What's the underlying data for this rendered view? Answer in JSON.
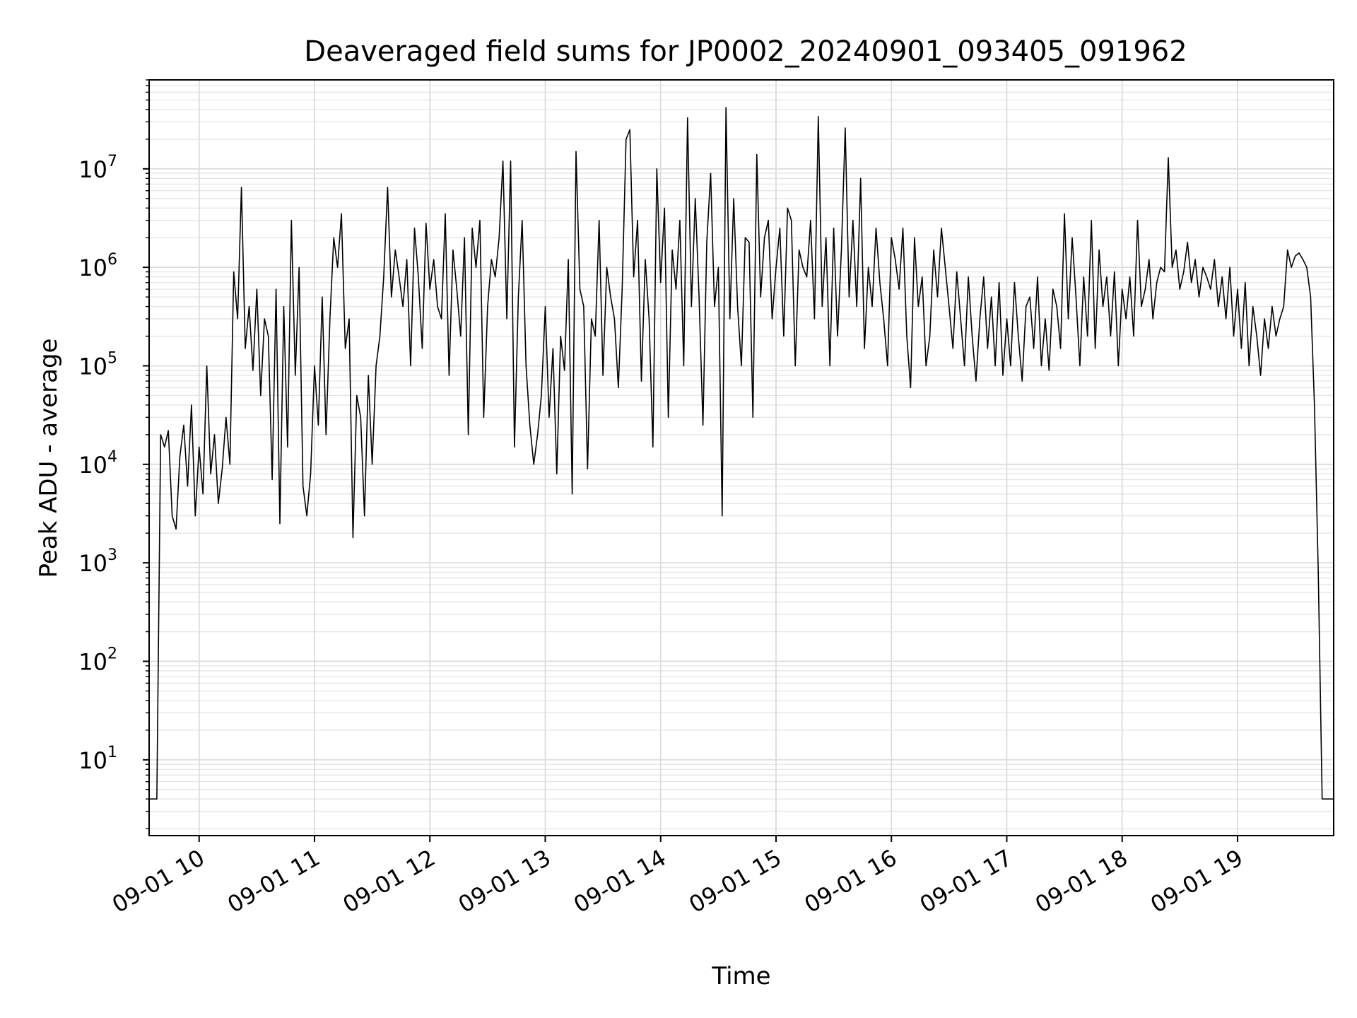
{
  "chart_data": {
    "type": "line",
    "title": "Deaveraged field sums for JP0002_20240901_093405_091962",
    "xlabel": "Time",
    "ylabel": "Peak ADU - average",
    "yscale": "log",
    "ylim": [
      1.7,
      80000000
    ],
    "xlim": [
      "09-01 09:34",
      "09-01 19:50"
    ],
    "grid": true,
    "x_ticks": [
      "09-01 10",
      "09-01 11",
      "09-01 12",
      "09-01 13",
      "09-01 14",
      "09-01 15",
      "09-01 16",
      "09-01 17",
      "09-01 18",
      "09-01 19"
    ],
    "y_ticks": [
      {
        "base": "10",
        "exp": "1",
        "value": 10
      },
      {
        "base": "10",
        "exp": "2",
        "value": 100
      },
      {
        "base": "10",
        "exp": "3",
        "value": 1000
      },
      {
        "base": "10",
        "exp": "4",
        "value": 10000
      },
      {
        "base": "10",
        "exp": "5",
        "value": 100000
      },
      {
        "base": "10",
        "exp": "6",
        "value": 1000000
      },
      {
        "base": "10",
        "exp": "7",
        "value": 10000000
      }
    ],
    "series": [
      {
        "color": "#000000",
        "x": [
          "09-01 09:34",
          "09-01 09:36",
          "09-01 09:38",
          "09-01 09:40",
          "09-01 09:42",
          "09-01 09:44",
          "09-01 09:46",
          "09-01 09:48",
          "09-01 09:50",
          "09-01 09:52",
          "09-01 09:54",
          "09-01 09:56",
          "09-01 09:58",
          "09-01 10:00",
          "09-01 10:02",
          "09-01 10:04",
          "09-01 10:06",
          "09-01 10:08",
          "09-01 10:10",
          "09-01 10:12",
          "09-01 10:14",
          "09-01 10:16",
          "09-01 10:18",
          "09-01 10:20",
          "09-01 10:22",
          "09-01 10:24",
          "09-01 10:26",
          "09-01 10:28",
          "09-01 10:30",
          "09-01 10:32",
          "09-01 10:34",
          "09-01 10:36",
          "09-01 10:38",
          "09-01 10:40",
          "09-01 10:42",
          "09-01 10:44",
          "09-01 10:46",
          "09-01 10:48",
          "09-01 10:50",
          "09-01 10:52",
          "09-01 10:54",
          "09-01 10:56",
          "09-01 10:58",
          "09-01 11:00",
          "09-01 11:02",
          "09-01 11:04",
          "09-01 11:06",
          "09-01 11:08",
          "09-01 11:10",
          "09-01 11:12",
          "09-01 11:14",
          "09-01 11:16",
          "09-01 11:18",
          "09-01 11:20",
          "09-01 11:22",
          "09-01 11:24",
          "09-01 11:26",
          "09-01 11:28",
          "09-01 11:30",
          "09-01 11:32",
          "09-01 11:34",
          "09-01 11:36",
          "09-01 11:38",
          "09-01 11:40",
          "09-01 11:42",
          "09-01 11:44",
          "09-01 11:46",
          "09-01 11:48",
          "09-01 11:50",
          "09-01 11:52",
          "09-01 11:54",
          "09-01 11:56",
          "09-01 11:58",
          "09-01 12:00",
          "09-01 12:02",
          "09-01 12:04",
          "09-01 12:06",
          "09-01 12:08",
          "09-01 12:10",
          "09-01 12:12",
          "09-01 12:14",
          "09-01 12:16",
          "09-01 12:18",
          "09-01 12:20",
          "09-01 12:22",
          "09-01 12:24",
          "09-01 12:26",
          "09-01 12:28",
          "09-01 12:30",
          "09-01 12:32",
          "09-01 12:34",
          "09-01 12:36",
          "09-01 12:38",
          "09-01 12:40",
          "09-01 12:42",
          "09-01 12:44",
          "09-01 12:46",
          "09-01 12:48",
          "09-01 12:50",
          "09-01 12:52",
          "09-01 12:54",
          "09-01 12:56",
          "09-01 12:58",
          "09-01 13:00",
          "09-01 13:02",
          "09-01 13:04",
          "09-01 13:06",
          "09-01 13:08",
          "09-01 13:10",
          "09-01 13:12",
          "09-01 13:14",
          "09-01 13:16",
          "09-01 13:18",
          "09-01 13:20",
          "09-01 13:22",
          "09-01 13:24",
          "09-01 13:26",
          "09-01 13:28",
          "09-01 13:30",
          "09-01 13:32",
          "09-01 13:34",
          "09-01 13:36",
          "09-01 13:38",
          "09-01 13:40",
          "09-01 13:42",
          "09-01 13:44",
          "09-01 13:46",
          "09-01 13:48",
          "09-01 13:50",
          "09-01 13:52",
          "09-01 13:54",
          "09-01 13:56",
          "09-01 13:58",
          "09-01 14:00",
          "09-01 14:02",
          "09-01 14:04",
          "09-01 14:06",
          "09-01 14:08",
          "09-01 14:10",
          "09-01 14:12",
          "09-01 14:14",
          "09-01 14:16",
          "09-01 14:18",
          "09-01 14:20",
          "09-01 14:22",
          "09-01 14:24",
          "09-01 14:26",
          "09-01 14:28",
          "09-01 14:30",
          "09-01 14:32",
          "09-01 14:34",
          "09-01 14:36",
          "09-01 14:38",
          "09-01 14:40",
          "09-01 14:42",
          "09-01 14:44",
          "09-01 14:46",
          "09-01 14:48",
          "09-01 14:50",
          "09-01 14:52",
          "09-01 14:54",
          "09-01 14:56",
          "09-01 14:58",
          "09-01 15:00",
          "09-01 15:02",
          "09-01 15:04",
          "09-01 15:06",
          "09-01 15:08",
          "09-01 15:10",
          "09-01 15:12",
          "09-01 15:14",
          "09-01 15:16",
          "09-01 15:18",
          "09-01 15:20",
          "09-01 15:22",
          "09-01 15:24",
          "09-01 15:26",
          "09-01 15:28",
          "09-01 15:30",
          "09-01 15:32",
          "09-01 15:34",
          "09-01 15:36",
          "09-01 15:38",
          "09-01 15:40",
          "09-01 15:42",
          "09-01 15:44",
          "09-01 15:46",
          "09-01 15:48",
          "09-01 15:50",
          "09-01 15:52",
          "09-01 15:54",
          "09-01 15:56",
          "09-01 15:58",
          "09-01 16:00",
          "09-01 16:02",
          "09-01 16:04",
          "09-01 16:06",
          "09-01 16:08",
          "09-01 16:10",
          "09-01 16:12",
          "09-01 16:14",
          "09-01 16:16",
          "09-01 16:18",
          "09-01 16:20",
          "09-01 16:22",
          "09-01 16:24",
          "09-01 16:26",
          "09-01 16:28",
          "09-01 16:30",
          "09-01 16:32",
          "09-01 16:34",
          "09-01 16:36",
          "09-01 16:38",
          "09-01 16:40",
          "09-01 16:42",
          "09-01 16:44",
          "09-01 16:46",
          "09-01 16:48",
          "09-01 16:50",
          "09-01 16:52",
          "09-01 16:54",
          "09-01 16:56",
          "09-01 16:58",
          "09-01 17:00",
          "09-01 17:02",
          "09-01 17:04",
          "09-01 17:06",
          "09-01 17:08",
          "09-01 17:10",
          "09-01 17:12",
          "09-01 17:14",
          "09-01 17:16",
          "09-01 17:18",
          "09-01 17:20",
          "09-01 17:22",
          "09-01 17:24",
          "09-01 17:26",
          "09-01 17:28",
          "09-01 17:30",
          "09-01 17:32",
          "09-01 17:34",
          "09-01 17:36",
          "09-01 17:38",
          "09-01 17:40",
          "09-01 17:42",
          "09-01 17:44",
          "09-01 17:46",
          "09-01 17:48",
          "09-01 17:50",
          "09-01 17:52",
          "09-01 17:54",
          "09-01 17:56",
          "09-01 17:58",
          "09-01 18:00",
          "09-01 18:02",
          "09-01 18:04",
          "09-01 18:06",
          "09-01 18:08",
          "09-01 18:10",
          "09-01 18:12",
          "09-01 18:14",
          "09-01 18:16",
          "09-01 18:18",
          "09-01 18:20",
          "09-01 18:22",
          "09-01 18:24",
          "09-01 18:26",
          "09-01 18:28",
          "09-01 18:30",
          "09-01 18:32",
          "09-01 18:34",
          "09-01 18:36",
          "09-01 18:38",
          "09-01 18:40",
          "09-01 18:42",
          "09-01 18:44",
          "09-01 18:46",
          "09-01 18:48",
          "09-01 18:50",
          "09-01 18:52",
          "09-01 18:54",
          "09-01 18:56",
          "09-01 18:58",
          "09-01 19:00",
          "09-01 19:02",
          "09-01 19:04",
          "09-01 19:06",
          "09-01 19:08",
          "09-01 19:10",
          "09-01 19:12",
          "09-01 19:14",
          "09-01 19:16",
          "09-01 19:18",
          "09-01 19:20",
          "09-01 19:22",
          "09-01 19:24",
          "09-01 19:26",
          "09-01 19:28",
          "09-01 19:30",
          "09-01 19:32",
          "09-01 19:34",
          "09-01 19:36",
          "09-01 19:38",
          "09-01 19:40",
          "09-01 19:42",
          "09-01 19:44",
          "09-01 19:46",
          "09-01 19:48",
          "09-01 19:50"
        ],
        "y": [
          4,
          4,
          4,
          20000,
          15000,
          22000,
          3000,
          2200,
          12000,
          25000,
          6000,
          40000,
          3000,
          15000,
          5000,
          100000,
          8000,
          20000,
          4000,
          9000,
          30000,
          10000,
          900000,
          300000,
          6500000,
          150000,
          400000,
          90000,
          600000,
          50000,
          300000,
          200000,
          7000,
          600000,
          2500,
          400000,
          15000,
          3000000,
          80000,
          1000000,
          6000,
          3000,
          8000,
          100000,
          25000,
          500000,
          20000,
          300000,
          2000000,
          1000000,
          3500000,
          150000,
          300000,
          1800,
          50000,
          30000,
          3000,
          80000,
          10000,
          100000,
          200000,
          800000,
          6500000,
          500000,
          1500000,
          800000,
          400000,
          1200000,
          100000,
          2500000,
          800000,
          150000,
          2800000,
          600000,
          1200000,
          400000,
          300000,
          3500000,
          80000,
          1500000,
          600000,
          200000,
          2000000,
          20000,
          2500000,
          1000000,
          3000000,
          30000,
          400000,
          1200000,
          800000,
          2000000,
          12000000,
          300000,
          12000000,
          15000,
          500000,
          3000000,
          100000,
          25000,
          10000,
          20000,
          50000,
          400000,
          30000,
          150000,
          8000,
          200000,
          90000,
          1200000,
          5000,
          15000000,
          600000,
          400000,
          9000,
          300000,
          200000,
          3000000,
          80000,
          1000000,
          500000,
          300000,
          60000,
          600000,
          20000000,
          25000000,
          800000,
          3000000,
          70000,
          1200000,
          300000,
          15000,
          10000000,
          700000,
          4000000,
          30000,
          1500000,
          600000,
          3000000,
          100000,
          33000000,
          400000,
          5000000,
          500000,
          25000,
          1800000,
          9000000,
          400000,
          1000000,
          3000,
          42000000,
          300000,
          5000000,
          400000,
          100000,
          2000000,
          1800000,
          30000,
          14000000,
          500000,
          2000000,
          3000000,
          300000,
          1000000,
          2500000,
          200000,
          4000000,
          3000000,
          100000,
          1500000,
          1000000,
          800000,
          3000000,
          300000,
          34000000,
          400000,
          2000000,
          100000,
          2500000,
          200000,
          1500000,
          26000000,
          500000,
          3000000,
          400000,
          8000000,
          150000,
          1000000,
          400000,
          2500000,
          700000,
          300000,
          100000,
          2000000,
          1200000,
          600000,
          2500000,
          200000,
          60000,
          2000000,
          400000,
          800000,
          100000,
          200000,
          1500000,
          500000,
          2500000,
          1000000,
          400000,
          150000,
          900000,
          300000,
          100000,
          800000,
          200000,
          70000,
          300000,
          800000,
          150000,
          500000,
          100000,
          700000,
          80000,
          300000,
          100000,
          700000,
          200000,
          70000,
          400000,
          500000,
          150000,
          800000,
          100000,
          300000,
          90000,
          600000,
          400000,
          150000,
          3500000,
          300000,
          2000000,
          500000,
          100000,
          800000,
          200000,
          3000000,
          150000,
          1500000,
          400000,
          800000,
          200000,
          900000,
          100000,
          600000,
          300000,
          800000,
          200000,
          3000000,
          400000,
          600000,
          1200000,
          300000,
          700000,
          1000000,
          900000,
          13000000,
          1000000,
          1500000,
          600000,
          900000,
          1800000,
          700000,
          1200000,
          500000,
          1000000,
          800000,
          600000,
          1200000,
          400000,
          800000,
          300000,
          1000000,
          200000,
          600000,
          150000,
          700000,
          100000,
          400000,
          200000,
          80000,
          300000,
          150000,
          400000,
          200000,
          300000,
          400000,
          1500000,
          1000000,
          1300000,
          1400000,
          1200000,
          1000000,
          500000,
          40000,
          800,
          4,
          4,
          4,
          4
        ]
      }
    ]
  }
}
